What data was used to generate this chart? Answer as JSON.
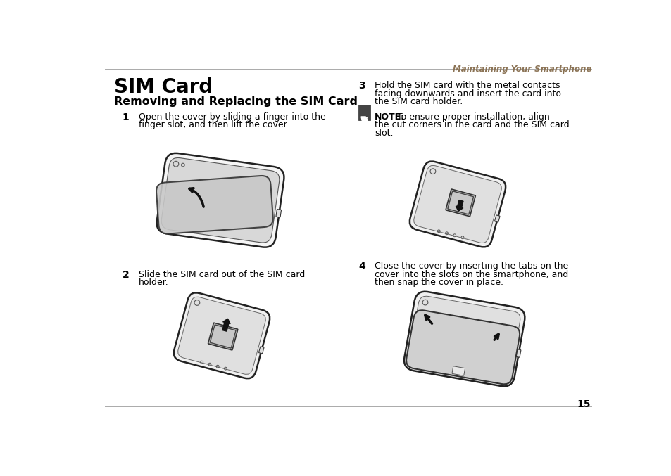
{
  "bg_color": "#ffffff",
  "header_text": "Maintaining Your Smartphone",
  "title": "SIM Card",
  "subtitle": "Removing and Replacing the SIM Card",
  "step1_num": "1",
  "step1_line1": "Open the cover by sliding a finger into the",
  "step1_line2": "finger slot, and then lift the cover.",
  "step2_num": "2",
  "step2_line1": "Slide the SIM card out of the SIM card",
  "step2_line2": "holder.",
  "step3_num": "3",
  "step3_line1": "Hold the SIM card with the metal contacts",
  "step3_line2": "facing downwards and insert the card into",
  "step3_line3": "the SIM card holder.",
  "note_label": "NOTE:",
  "note_body": " To ensure proper installation, align\nthe cut corners in the card and the SIM card\nslot.",
  "step4_num": "4",
  "step4_line1": "Close the cover by inserting the tabs on the",
  "step4_line2": "cover into the slots on the smartphone, and",
  "step4_line3": "then snap the cover in place.",
  "page_number": "15",
  "header_color": "#8b7355",
  "text_color": "#000000"
}
